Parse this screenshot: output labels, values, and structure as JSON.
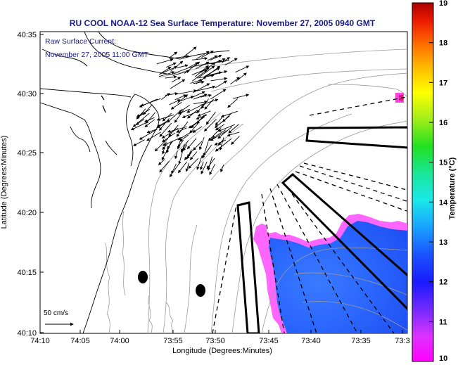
{
  "title": "RU COOL  NOAA-12  Sea Surface Temperature:  November 27, 2005 0940 GMT",
  "legend": {
    "line1": "Raw Surface Current:",
    "line2": "November 27, 2005 11:00 GMT"
  },
  "scale_label": "50 cm/s",
  "xlabel": "Longitude (Degrees:Minutes)",
  "ylabel": "Latitude (Degrees:Minutes)",
  "x_ticks": [
    "74:10",
    "74:05",
    "74:00",
    "73:55",
    "73:50",
    "73:45",
    "73:40",
    "73:35",
    "73:3"
  ],
  "y_ticks": [
    "40:35",
    "40:30",
    "40:25",
    "40:20",
    "40:15",
    "40:10"
  ],
  "colorbar": {
    "label": "Temperature (°C)",
    "ticks": [
      "19",
      "18",
      "17",
      "16",
      "15",
      "14",
      "13",
      "12",
      "11",
      "10"
    ],
    "min": 10,
    "max": 19
  },
  "colors": {
    "title": "#1a1a8c",
    "land_line": "#000000",
    "bathymetry": "#9a9a9a",
    "warm_water": "#ff66ff",
    "cool_water": "#2a66ff"
  }
}
